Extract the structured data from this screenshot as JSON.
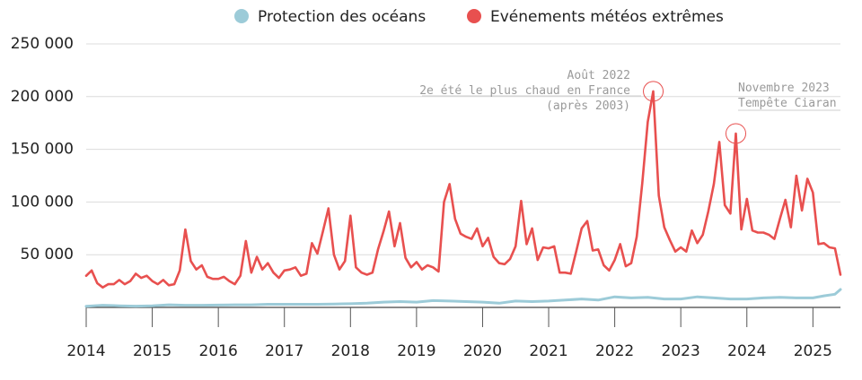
{
  "chart_data": {
    "type": "line",
    "title": "",
    "xlabel": "",
    "ylabel": "",
    "ylim": [
      0,
      250000
    ],
    "xlim": [
      "2014-01",
      "2025-06"
    ],
    "grid": true,
    "legend_position": "top",
    "y_ticks": [
      {
        "value": 50000,
        "label": "50 000"
      },
      {
        "value": 100000,
        "label": "100 000"
      },
      {
        "value": 150000,
        "label": "150 000"
      },
      {
        "value": 200000,
        "label": "200 000"
      },
      {
        "value": 250000,
        "label": "250 000"
      }
    ],
    "x_ticks": [
      {
        "value": "2014-01",
        "label": "2014"
      },
      {
        "value": "2015-01",
        "label": "2015"
      },
      {
        "value": "2016-01",
        "label": "2016"
      },
      {
        "value": "2017-01",
        "label": "2017"
      },
      {
        "value": "2018-01",
        "label": "2018"
      },
      {
        "value": "2019-01",
        "label": "2019"
      },
      {
        "value": "2020-01",
        "label": "2020"
      },
      {
        "value": "2021-01",
        "label": "2021"
      },
      {
        "value": "2022-01",
        "label": "2022"
      },
      {
        "value": "2023-01",
        "label": "2023"
      },
      {
        "value": "2024-01",
        "label": "2024"
      },
      {
        "value": "2025-01",
        "label": "2025"
      }
    ],
    "series": [
      {
        "name": "Protection des océans",
        "color": "#9ccbd8",
        "points": [
          [
            "2014-01",
            1000
          ],
          [
            "2014-04",
            2000
          ],
          [
            "2014-07",
            1500
          ],
          [
            "2014-10",
            1200
          ],
          [
            "2015-01",
            1500
          ],
          [
            "2015-04",
            2500
          ],
          [
            "2015-07",
            2000
          ],
          [
            "2015-10",
            2000
          ],
          [
            "2016-01",
            2200
          ],
          [
            "2016-04",
            2500
          ],
          [
            "2016-07",
            2500
          ],
          [
            "2016-10",
            3000
          ],
          [
            "2017-01",
            3000
          ],
          [
            "2017-04",
            3000
          ],
          [
            "2017-07",
            3000
          ],
          [
            "2017-10",
            3200
          ],
          [
            "2018-01",
            3500
          ],
          [
            "2018-04",
            4000
          ],
          [
            "2018-07",
            5000
          ],
          [
            "2018-10",
            5500
          ],
          [
            "2019-01",
            5000
          ],
          [
            "2019-04",
            6500
          ],
          [
            "2019-07",
            6000
          ],
          [
            "2019-10",
            5500
          ],
          [
            "2020-01",
            5000
          ],
          [
            "2020-04",
            4000
          ],
          [
            "2020-07",
            6000
          ],
          [
            "2020-10",
            5500
          ],
          [
            "2021-01",
            6000
          ],
          [
            "2021-04",
            7000
          ],
          [
            "2021-07",
            8000
          ],
          [
            "2021-10",
            7000
          ],
          [
            "2022-01",
            10000
          ],
          [
            "2022-04",
            9000
          ],
          [
            "2022-07",
            9500
          ],
          [
            "2022-10",
            8000
          ],
          [
            "2023-01",
            8000
          ],
          [
            "2023-04",
            10000
          ],
          [
            "2023-07",
            9000
          ],
          [
            "2023-10",
            8000
          ],
          [
            "2024-01",
            8000
          ],
          [
            "2024-04",
            9000
          ],
          [
            "2024-07",
            9500
          ],
          [
            "2024-10",
            9000
          ],
          [
            "2025-01",
            9000
          ],
          [
            "2025-03",
            11000
          ],
          [
            "2025-05",
            12500
          ],
          [
            "2025-06",
            17000
          ]
        ]
      },
      {
        "name": "Evénements météos extrêmes",
        "color": "#e8504f",
        "points": [
          [
            "2014-01",
            30000
          ],
          [
            "2014-02",
            35000
          ],
          [
            "2014-03",
            23000
          ],
          [
            "2014-04",
            19000
          ],
          [
            "2014-05",
            22000
          ],
          [
            "2014-06",
            22000
          ],
          [
            "2014-07",
            26000
          ],
          [
            "2014-08",
            22000
          ],
          [
            "2014-09",
            25000
          ],
          [
            "2014-10",
            32000
          ],
          [
            "2014-11",
            28000
          ],
          [
            "2014-12",
            30000
          ],
          [
            "2015-01",
            25000
          ],
          [
            "2015-02",
            22000
          ],
          [
            "2015-03",
            26000
          ],
          [
            "2015-04",
            21000
          ],
          [
            "2015-05",
            22000
          ],
          [
            "2015-06",
            35000
          ],
          [
            "2015-07",
            74000
          ],
          [
            "2015-08",
            44000
          ],
          [
            "2015-09",
            36000
          ],
          [
            "2015-10",
            40000
          ],
          [
            "2015-11",
            29000
          ],
          [
            "2015-12",
            27000
          ],
          [
            "2016-01",
            27000
          ],
          [
            "2016-02",
            29000
          ],
          [
            "2016-03",
            25000
          ],
          [
            "2016-04",
            22000
          ],
          [
            "2016-05",
            30000
          ],
          [
            "2016-06",
            63000
          ],
          [
            "2016-07",
            33000
          ],
          [
            "2016-08",
            48000
          ],
          [
            "2016-09",
            36000
          ],
          [
            "2016-10",
            42000
          ],
          [
            "2016-11",
            33000
          ],
          [
            "2016-12",
            28000
          ],
          [
            "2017-01",
            35000
          ],
          [
            "2017-02",
            36000
          ],
          [
            "2017-03",
            38000
          ],
          [
            "2017-04",
            30000
          ],
          [
            "2017-05",
            32000
          ],
          [
            "2017-06",
            61000
          ],
          [
            "2017-07",
            51000
          ],
          [
            "2017-08",
            72000
          ],
          [
            "2017-09",
            94000
          ],
          [
            "2017-10",
            50000
          ],
          [
            "2017-11",
            36000
          ],
          [
            "2017-12",
            44000
          ],
          [
            "2018-01",
            87000
          ],
          [
            "2018-02",
            38000
          ],
          [
            "2018-03",
            33000
          ],
          [
            "2018-04",
            31000
          ],
          [
            "2018-05",
            33000
          ],
          [
            "2018-06",
            55000
          ],
          [
            "2018-07",
            72000
          ],
          [
            "2018-08",
            91000
          ],
          [
            "2018-09",
            58000
          ],
          [
            "2018-10",
            80000
          ],
          [
            "2018-11",
            47000
          ],
          [
            "2018-12",
            38000
          ],
          [
            "2019-01",
            43000
          ],
          [
            "2019-02",
            36000
          ],
          [
            "2019-03",
            40000
          ],
          [
            "2019-04",
            38000
          ],
          [
            "2019-05",
            34000
          ],
          [
            "2019-06",
            100000
          ],
          [
            "2019-07",
            117000
          ],
          [
            "2019-08",
            84000
          ],
          [
            "2019-09",
            70000
          ],
          [
            "2019-10",
            67000
          ],
          [
            "2019-11",
            65000
          ],
          [
            "2019-12",
            75000
          ],
          [
            "2020-01",
            58000
          ],
          [
            "2020-02",
            66000
          ],
          [
            "2020-03",
            48000
          ],
          [
            "2020-04",
            42000
          ],
          [
            "2020-05",
            41000
          ],
          [
            "2020-06",
            46000
          ],
          [
            "2020-07",
            58000
          ],
          [
            "2020-08",
            101000
          ],
          [
            "2020-09",
            60000
          ],
          [
            "2020-10",
            75000
          ],
          [
            "2020-11",
            45000
          ],
          [
            "2020-12",
            57000
          ],
          [
            "2021-01",
            56000
          ],
          [
            "2021-02",
            58000
          ],
          [
            "2021-03",
            33000
          ],
          [
            "2021-04",
            33000
          ],
          [
            "2021-05",
            32000
          ],
          [
            "2021-06",
            53000
          ],
          [
            "2021-07",
            75000
          ],
          [
            "2021-08",
            82000
          ],
          [
            "2021-09",
            54000
          ],
          [
            "2021-10",
            55000
          ],
          [
            "2021-11",
            40000
          ],
          [
            "2021-12",
            35000
          ],
          [
            "2022-01",
            45000
          ],
          [
            "2022-02",
            60000
          ],
          [
            "2022-03",
            39000
          ],
          [
            "2022-04",
            42000
          ],
          [
            "2022-05",
            67000
          ],
          [
            "2022-06",
            118000
          ],
          [
            "2022-07",
            176000
          ],
          [
            "2022-08",
            205000
          ],
          [
            "2022-09",
            106000
          ],
          [
            "2022-10",
            76000
          ],
          [
            "2022-11",
            64000
          ],
          [
            "2022-12",
            53000
          ],
          [
            "2023-01",
            57000
          ],
          [
            "2023-02",
            53000
          ],
          [
            "2023-03",
            73000
          ],
          [
            "2023-04",
            61000
          ],
          [
            "2023-05",
            69000
          ],
          [
            "2023-06",
            91000
          ],
          [
            "2023-07",
            117000
          ],
          [
            "2023-08",
            157000
          ],
          [
            "2023-09",
            97000
          ],
          [
            "2023-10",
            89000
          ],
          [
            "2023-11",
            165000
          ],
          [
            "2023-12",
            74000
          ],
          [
            "2024-01",
            103000
          ],
          [
            "2024-02",
            73000
          ],
          [
            "2024-03",
            71000
          ],
          [
            "2024-04",
            71000
          ],
          [
            "2024-05",
            69000
          ],
          [
            "2024-06",
            65000
          ],
          [
            "2024-07",
            84000
          ],
          [
            "2024-08",
            102000
          ],
          [
            "2024-09",
            76000
          ],
          [
            "2024-10",
            125000
          ],
          [
            "2024-11",
            92000
          ],
          [
            "2024-12",
            122000
          ],
          [
            "2025-01",
            109000
          ],
          [
            "2025-02",
            60000
          ],
          [
            "2025-03",
            61000
          ],
          [
            "2025-04",
            57000
          ],
          [
            "2025-05",
            56000
          ],
          [
            "2025-06",
            31000
          ]
        ]
      }
    ],
    "annotations": [
      {
        "id": "aug2022",
        "date": "2022-08",
        "value": 205000,
        "lines": [
          "Août 2022",
          "2e été le plus chaud en France",
          "(après 2003)"
        ]
      },
      {
        "id": "nov2023",
        "date": "2023-11",
        "value": 165000,
        "lines": [
          "Novembre 2023",
          "Tempête Ciaran"
        ]
      }
    ]
  }
}
